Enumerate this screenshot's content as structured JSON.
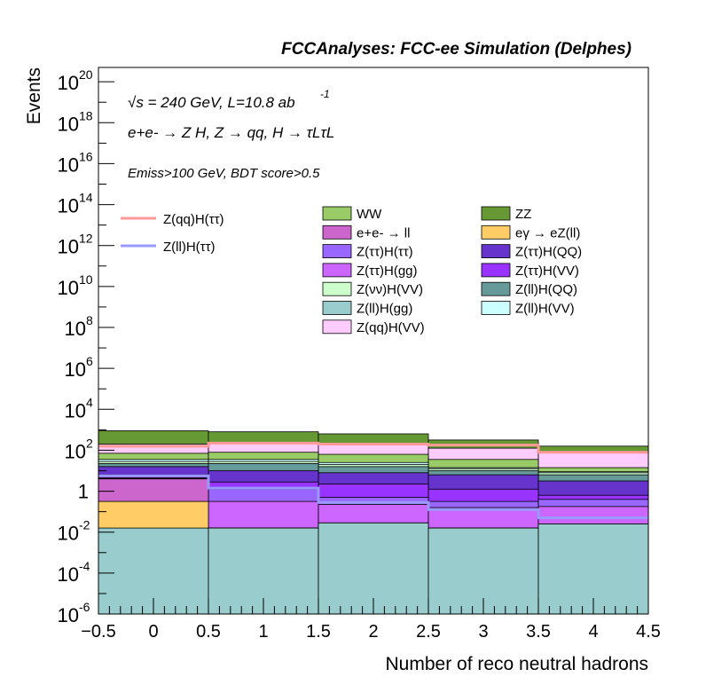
{
  "chart_data": {
    "type": "area",
    "header": "FCCAnalyses: FCC-ee Simulation (Delphes)",
    "annotations": {
      "energy_lumi": "√s = 240 GeV, L=10.8 ab",
      "lumi_exponent": "-1",
      "process": "e+e- → Z H, Z → qq, H → τLτL",
      "selection": "Emiss>100 GeV, BDT score>0.5"
    },
    "xlabel": "Number of reco neutral hadrons",
    "ylabel": "Events",
    "xlim": [
      -0.5,
      4.5
    ],
    "ylim_log10": [
      -6,
      20.7
    ],
    "log_y": true,
    "grid": false,
    "legend_position": "top",
    "x_tick_labels": [
      "−0.5",
      "0",
      "0.5",
      "1",
      "1.5",
      "2",
      "2.5",
      "3",
      "3.5",
      "4",
      "4.5"
    ],
    "y_tick_labels": [
      {
        "base": "10",
        "exp": "-6",
        "log": -6
      },
      {
        "base": "10",
        "exp": "-4",
        "log": -4
      },
      {
        "base": "10",
        "exp": "-2",
        "log": -2
      },
      {
        "base": "1",
        "exp": "",
        "log": 0
      },
      {
        "base": "10",
        "exp": "2",
        "log": 2
      },
      {
        "base": "10",
        "exp": "4",
        "log": 4
      },
      {
        "base": "10",
        "exp": "6",
        "log": 6
      },
      {
        "base": "10",
        "exp": "8",
        "log": 8
      },
      {
        "base": "10",
        "exp": "10",
        "log": 10
      },
      {
        "base": "10",
        "exp": "12",
        "log": 12
      },
      {
        "base": "10",
        "exp": "14",
        "log": 14
      },
      {
        "base": "10",
        "exp": "16",
        "log": 16
      },
      {
        "base": "10",
        "exp": "18",
        "log": 18
      },
      {
        "base": "10",
        "exp": "20",
        "log": 20
      }
    ],
    "bin_edges": [
      -0.5,
      0.5,
      1.5,
      2.5,
      3.5,
      4.5
    ],
    "stack_order_bottom_to_top": [
      "Z(ll)H(gg)",
      "eγ → eZ(ll)",
      "e+e- → ll",
      "Z(ττ)H(gg)",
      "Z(ττ)H(ττ)",
      "Z(ττ)H(VV)",
      "Z(ττ)H(QQ)",
      "Z(ll)H(QQ)",
      "Z(νν)H(VV)",
      "Z(ll)H(VV)",
      "WW",
      "Z(qq)H(VV)",
      "ZZ"
    ],
    "stack_cumulative_log10_tops": [
      {
        "name": "Z(ll)H(gg)",
        "color": "#99cccc",
        "values": [
          -1.8,
          -1.8,
          -1.55,
          -1.8,
          -1.6
        ]
      },
      {
        "name": "eγ → eZ(ll)",
        "color": "#ffcc66",
        "values": [
          -0.5,
          -1.8,
          -1.55,
          -1.8,
          -1.6
        ]
      },
      {
        "name": "e+e- → ll",
        "color": "#cc66cc",
        "values": [
          0.6,
          -1.8,
          -1.55,
          -1.8,
          -1.6
        ]
      },
      {
        "name": "Z(ττ)H(gg)",
        "color": "#cc66ff",
        "values": [
          0.62,
          -0.5,
          -0.65,
          -0.8,
          -0.75
        ]
      },
      {
        "name": "Z(ττ)H(ττ)",
        "color": "#9966ff",
        "values": [
          0.65,
          0.1,
          -0.3,
          -0.5,
          -0.4
        ]
      },
      {
        "name": "Z(ττ)H(VV)",
        "color": "#9933ff",
        "values": [
          0.8,
          0.45,
          0.35,
          0.1,
          -0.2
        ]
      },
      {
        "name": "Z(ττ)H(QQ)",
        "color": "#6633cc",
        "values": [
          1.2,
          1.0,
          0.9,
          0.8,
          0.5
        ]
      },
      {
        "name": "Z(ll)H(QQ)",
        "color": "#669999",
        "values": [
          1.35,
          1.35,
          1.2,
          1.0,
          0.8
        ]
      },
      {
        "name": "Z(νν)H(VV)",
        "color": "#ccffcc",
        "values": [
          1.45,
          1.45,
          1.3,
          1.1,
          0.9
        ]
      },
      {
        "name": "Z(ll)H(VV)",
        "color": "#ccffff",
        "values": [
          1.55,
          1.55,
          1.4,
          1.15,
          0.95
        ]
      },
      {
        "name": "WW",
        "color": "#99cc66",
        "values": [
          1.85,
          1.9,
          1.8,
          1.55,
          1.15
        ]
      },
      {
        "name": "Z(qq)H(VV)",
        "color": "#ffccff",
        "values": [
          2.3,
          2.35,
          2.3,
          2.1,
          1.9
        ]
      },
      {
        "name": "ZZ",
        "color": "#669933",
        "values": [
          2.95,
          2.9,
          2.8,
          2.5,
          2.2
        ]
      }
    ],
    "signal_series": [
      {
        "name": "Z(qq)H(ττ)",
        "color": "#ff9999",
        "values_log10": [
          2.2,
          2.35,
          2.3,
          2.25,
          1.9
        ]
      },
      {
        "name": "Z(ll)H(ττ)",
        "color": "#9999ff",
        "values_log10": [
          0.75,
          0.15,
          -0.55,
          -0.9,
          -1.3
        ]
      }
    ],
    "legend_left": [
      "Z(qq)H(ττ)",
      "Z(ll)H(ττ)"
    ],
    "legend_center": [
      "WW",
      "e+e- → ll",
      "Z(ττ)H(ττ)",
      "Z(ττ)H(gg)",
      "Z(νν)H(VV)",
      "Z(ll)H(gg)",
      "Z(qq)H(VV)"
    ],
    "legend_right": [
      "ZZ",
      "eγ → eZ(ll)",
      "Z(ττ)H(QQ)",
      "Z(ττ)H(VV)",
      "Z(ll)H(QQ)",
      "Z(ll)H(VV)"
    ]
  }
}
